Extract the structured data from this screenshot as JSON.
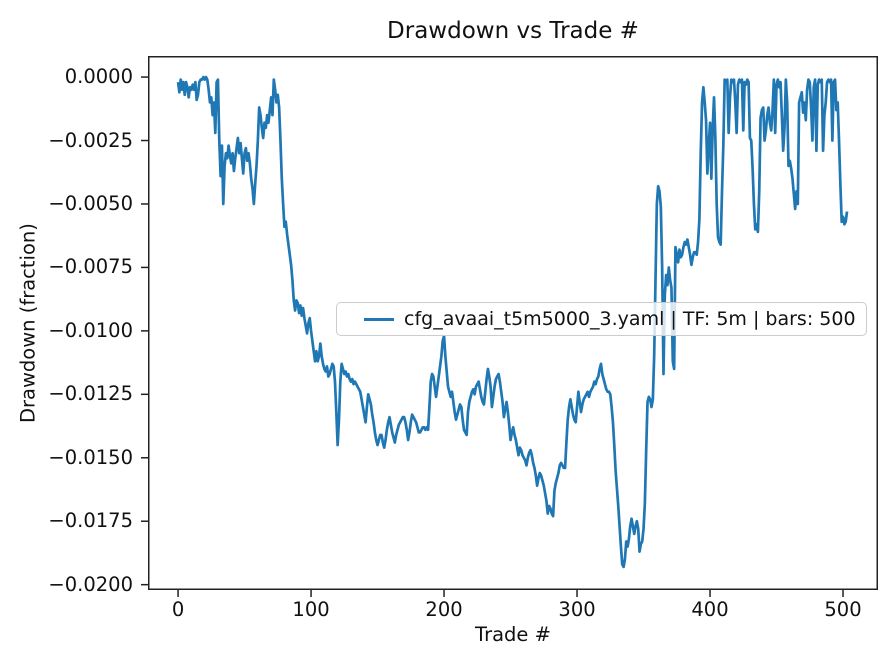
{
  "accent_color": "#1f77b4",
  "spine_color": "#222222",
  "chart_data": {
    "type": "line",
    "title": "Drawdown vs Trade #",
    "xlabel": "Trade #",
    "ylabel": "Drawdown (fraction)",
    "legend": [
      "cfg_avaai_t5m5000_3.yaml | TF: 5m | bars: 500"
    ],
    "legend_position": "center",
    "grid": false,
    "line_color": "#1f77b4",
    "xlim": [
      -22.6,
      526.3
    ],
    "ylim": [
      -0.02021,
      0.00083
    ],
    "xticks": [
      0,
      100,
      200,
      300,
      400,
      500
    ],
    "xtick_labels": [
      "0",
      "100",
      "200",
      "300",
      "400",
      "500"
    ],
    "yticks": [
      0.0,
      -0.0025,
      -0.005,
      -0.0075,
      -0.01,
      -0.0125,
      -0.015,
      -0.0175,
      -0.02
    ],
    "ytick_labels": [
      "0.0000",
      "−0.0025",
      "−0.0050",
      "−0.0075",
      "−0.0100",
      "−0.0125",
      "−0.0150",
      "−0.0175",
      "−0.0200"
    ],
    "x0": 0,
    "dx": 1,
    "values": [
      -0.0002,
      -0.0006,
      -0.0001,
      -0.0005,
      -0.0002,
      -0.0007,
      -0.0002,
      -0.0004,
      -0.0008,
      -0.0004,
      -0.0005,
      -0.0003,
      -0.0005,
      -0.0002,
      -0.0009,
      -0.0007,
      -0.0002,
      -0.0001,
      -0.0001,
      0,
      -0.0001,
      0,
      -0.0001,
      -0.0005,
      -0.001,
      -0.0008,
      -0.0015,
      -0.001,
      -0.0022,
      -0.0002,
      -0.0001,
      -0.0025,
      -0.0039,
      -0.0027,
      -0.005,
      -0.0035,
      -0.003,
      -0.0032,
      -0.0027,
      -0.0031,
      -0.0034,
      -0.003,
      -0.0037,
      -0.0032,
      -0.0028,
      -0.0024,
      -0.003,
      -0.0026,
      -0.0032,
      -0.0038,
      -0.003,
      -0.0028,
      -0.0033,
      -0.003,
      -0.0034,
      -0.004,
      -0.0044,
      -0.005,
      -0.0042,
      -0.0035,
      -0.0025,
      -0.0012,
      -0.0015,
      -0.002,
      -0.0024,
      -0.0018,
      -0.002,
      -0.0015,
      -0.0018,
      -0.0013,
      -0.0008,
      -0.0015,
      -0.0001,
      -0.0005,
      -0.001,
      -0.0007,
      -0.0012,
      -0.0025,
      -0.004,
      -0.005,
      -0.0059,
      -0.0057,
      -0.0062,
      -0.0066,
      -0.007,
      -0.0074,
      -0.008,
      -0.0088,
      -0.0092,
      -0.0088,
      -0.0089,
      -0.0093,
      -0.009,
      -0.0094,
      -0.0091,
      -0.0095,
      -0.0098,
      -0.0101,
      -0.0097,
      -0.0095,
      -0.01,
      -0.0104,
      -0.0108,
      -0.0112,
      -0.0108,
      -0.0112,
      -0.011,
      -0.0105,
      -0.011,
      -0.0113,
      -0.0115,
      -0.0116,
      -0.0114,
      -0.0118,
      -0.0117,
      -0.0115,
      -0.0113,
      -0.0114,
      -0.012,
      -0.0132,
      -0.0145,
      -0.0135,
      -0.012,
      -0.0113,
      -0.0115,
      -0.0117,
      -0.0116,
      -0.0118,
      -0.0117,
      -0.0119,
      -0.012,
      -0.0119,
      -0.0121,
      -0.012,
      -0.0121,
      -0.0122,
      -0.0123,
      -0.0124,
      -0.0127,
      -0.013,
      -0.0133,
      -0.0136,
      -0.013,
      -0.0125,
      -0.0127,
      -0.0129,
      -0.0133,
      -0.0136,
      -0.014,
      -0.0143,
      -0.0145,
      -0.0143,
      -0.0141,
      -0.0141,
      -0.0144,
      -0.0146,
      -0.0143,
      -0.0139,
      -0.0136,
      -0.0134,
      -0.0137,
      -0.014,
      -0.0142,
      -0.0144,
      -0.0141,
      -0.0139,
      -0.0137,
      -0.0136,
      -0.0135,
      -0.0134,
      -0.0134,
      -0.0136,
      -0.0139,
      -0.0143,
      -0.014,
      -0.0136,
      -0.0133,
      -0.0134,
      -0.0135,
      -0.0136,
      -0.0138,
      -0.014,
      -0.014,
      -0.0139,
      -0.0138,
      -0.0138,
      -0.0139,
      -0.0138,
      -0.0139,
      -0.013,
      -0.012,
      -0.0117,
      -0.0118,
      -0.0122,
      -0.0126,
      -0.0122,
      -0.0118,
      -0.0114,
      -0.011,
      -0.0104,
      -0.0102,
      -0.011,
      -0.0116,
      -0.0122,
      -0.0124,
      -0.0126,
      -0.0124,
      -0.0128,
      -0.0132,
      -0.0135,
      -0.0133,
      -0.0131,
      -0.0129,
      -0.013,
      -0.0135,
      -0.0139,
      -0.014,
      -0.0141,
      -0.0132,
      -0.0128,
      -0.0126,
      -0.0124,
      -0.0123,
      -0.0125,
      -0.0122,
      -0.0121,
      -0.012,
      -0.0123,
      -0.0126,
      -0.0128,
      -0.0129,
      -0.0124,
      -0.0119,
      -0.0115,
      -0.0118,
      -0.0122,
      -0.013,
      -0.0126,
      -0.0122,
      -0.0119,
      -0.0118,
      -0.0117,
      -0.012,
      -0.0124,
      -0.0128,
      -0.0134,
      -0.0131,
      -0.0128,
      -0.0132,
      -0.0137,
      -0.0143,
      -0.014,
      -0.0138,
      -0.0141,
      -0.0143,
      -0.0146,
      -0.0149,
      -0.0146,
      -0.0147,
      -0.0149,
      -0.015,
      -0.0151,
      -0.0153,
      -0.015,
      -0.0148,
      -0.0147,
      -0.0149,
      -0.0152,
      -0.0154,
      -0.0157,
      -0.0161,
      -0.0158,
      -0.0156,
      -0.0157,
      -0.0159,
      -0.0161,
      -0.0164,
      -0.0167,
      -0.0172,
      -0.0169,
      -0.017,
      -0.0172,
      -0.0173,
      -0.0163,
      -0.016,
      -0.0158,
      -0.0156,
      -0.0153,
      -0.0152,
      -0.0153,
      -0.0154,
      -0.0154,
      -0.0144,
      -0.0135,
      -0.013,
      -0.0127,
      -0.013,
      -0.0133,
      -0.0135,
      -0.0136,
      -0.013,
      -0.0124,
      -0.0128,
      -0.0132,
      -0.0129,
      -0.0127,
      -0.0126,
      -0.0125,
      -0.0124,
      -0.0126,
      -0.0124,
      -0.0123,
      -0.0122,
      -0.012,
      -0.0121,
      -0.0119,
      -0.0118,
      -0.0115,
      -0.0113,
      -0.0117,
      -0.0119,
      -0.0121,
      -0.0123,
      -0.0124,
      -0.0124,
      -0.0125,
      -0.013,
      -0.0136,
      -0.0145,
      -0.0155,
      -0.0162,
      -0.0169,
      -0.0177,
      -0.0185,
      -0.0192,
      -0.0193,
      -0.019,
      -0.0183,
      -0.0185,
      -0.0182,
      -0.0177,
      -0.0174,
      -0.0177,
      -0.018,
      -0.0177,
      -0.0175,
      -0.0178,
      -0.0187,
      -0.0184,
      -0.0183,
      -0.0178,
      -0.0168,
      -0.0147,
      -0.0128,
      -0.0126,
      -0.0127,
      -0.013,
      -0.0127,
      -0.011,
      -0.008,
      -0.005,
      -0.0043,
      -0.0045,
      -0.0051,
      -0.0075,
      -0.0117,
      -0.0086,
      -0.0078,
      -0.0082,
      -0.0075,
      -0.008,
      -0.0083,
      -0.0112,
      -0.0115,
      -0.0067,
      -0.007,
      -0.0073,
      -0.0068,
      -0.0071,
      -0.007,
      -0.0067,
      -0.0065,
      -0.0066,
      -0.0064,
      -0.0067,
      -0.007,
      -0.0074,
      -0.0071,
      -0.0069,
      -0.0069,
      -0.007,
      -0.0065,
      -0.0056,
      -0.003,
      -0.001,
      -0.0004,
      -0.001,
      -0.0017,
      -0.0038,
      -0.0027,
      -0.0018,
      -0.004,
      -0.002,
      -0.0008,
      -0.0024,
      -0.005,
      -0.0063,
      -0.0065,
      -0.0066,
      -0.0045,
      -0.0027,
      -0.0001,
      -0.0002,
      -0.0001,
      -0.0022,
      -0.0008,
      -0.0001,
      -0.0002,
      -0.0001,
      -0.001,
      -0.0022,
      -0.0003,
      -0.0001,
      -0.0002,
      -0.0001,
      -0.0021,
      -0.0002,
      -0.0003,
      -0.0001,
      -0.0002,
      -0.0024,
      -0.0025,
      -0.0036,
      -0.005,
      -0.006,
      -0.0058,
      -0.0061,
      -0.0045,
      -0.0016,
      -0.0013,
      -0.0012,
      -0.0025,
      -0.0021,
      -0.0015,
      -0.0012,
      -0.0018,
      -0.0021,
      -0.0013,
      -0.0001,
      -0.0022,
      -0.0003,
      -0.0001,
      -0.0004,
      -0.0002,
      -0.0015,
      -0.0029,
      -0.002,
      -0.0001,
      -0.001,
      -0.0035,
      -0.0033,
      -0.0036,
      -0.004,
      -0.0046,
      -0.0052,
      -0.0045,
      -0.005,
      -0.001,
      -0.0008,
      -0.0006,
      -0.0014,
      -0.001,
      -0.0017,
      -0.0005,
      -0.0001,
      -0.0002,
      -0.0012,
      -0.0025,
      -0.0004,
      -0.0001,
      -0.0029,
      -0.0003,
      -0.0001,
      -0.0002,
      -0.0001,
      -0.0029,
      -0.0015,
      -0.001,
      -0.0002,
      -0.0001,
      -0.0002,
      -0.0001,
      -0.0025,
      -0.0002,
      -0.0001,
      -0.0013,
      -0.001,
      -0.0025,
      -0.0042,
      -0.0057,
      -0.0055,
      -0.0058,
      -0.0057,
      -0.0053
    ]
  }
}
